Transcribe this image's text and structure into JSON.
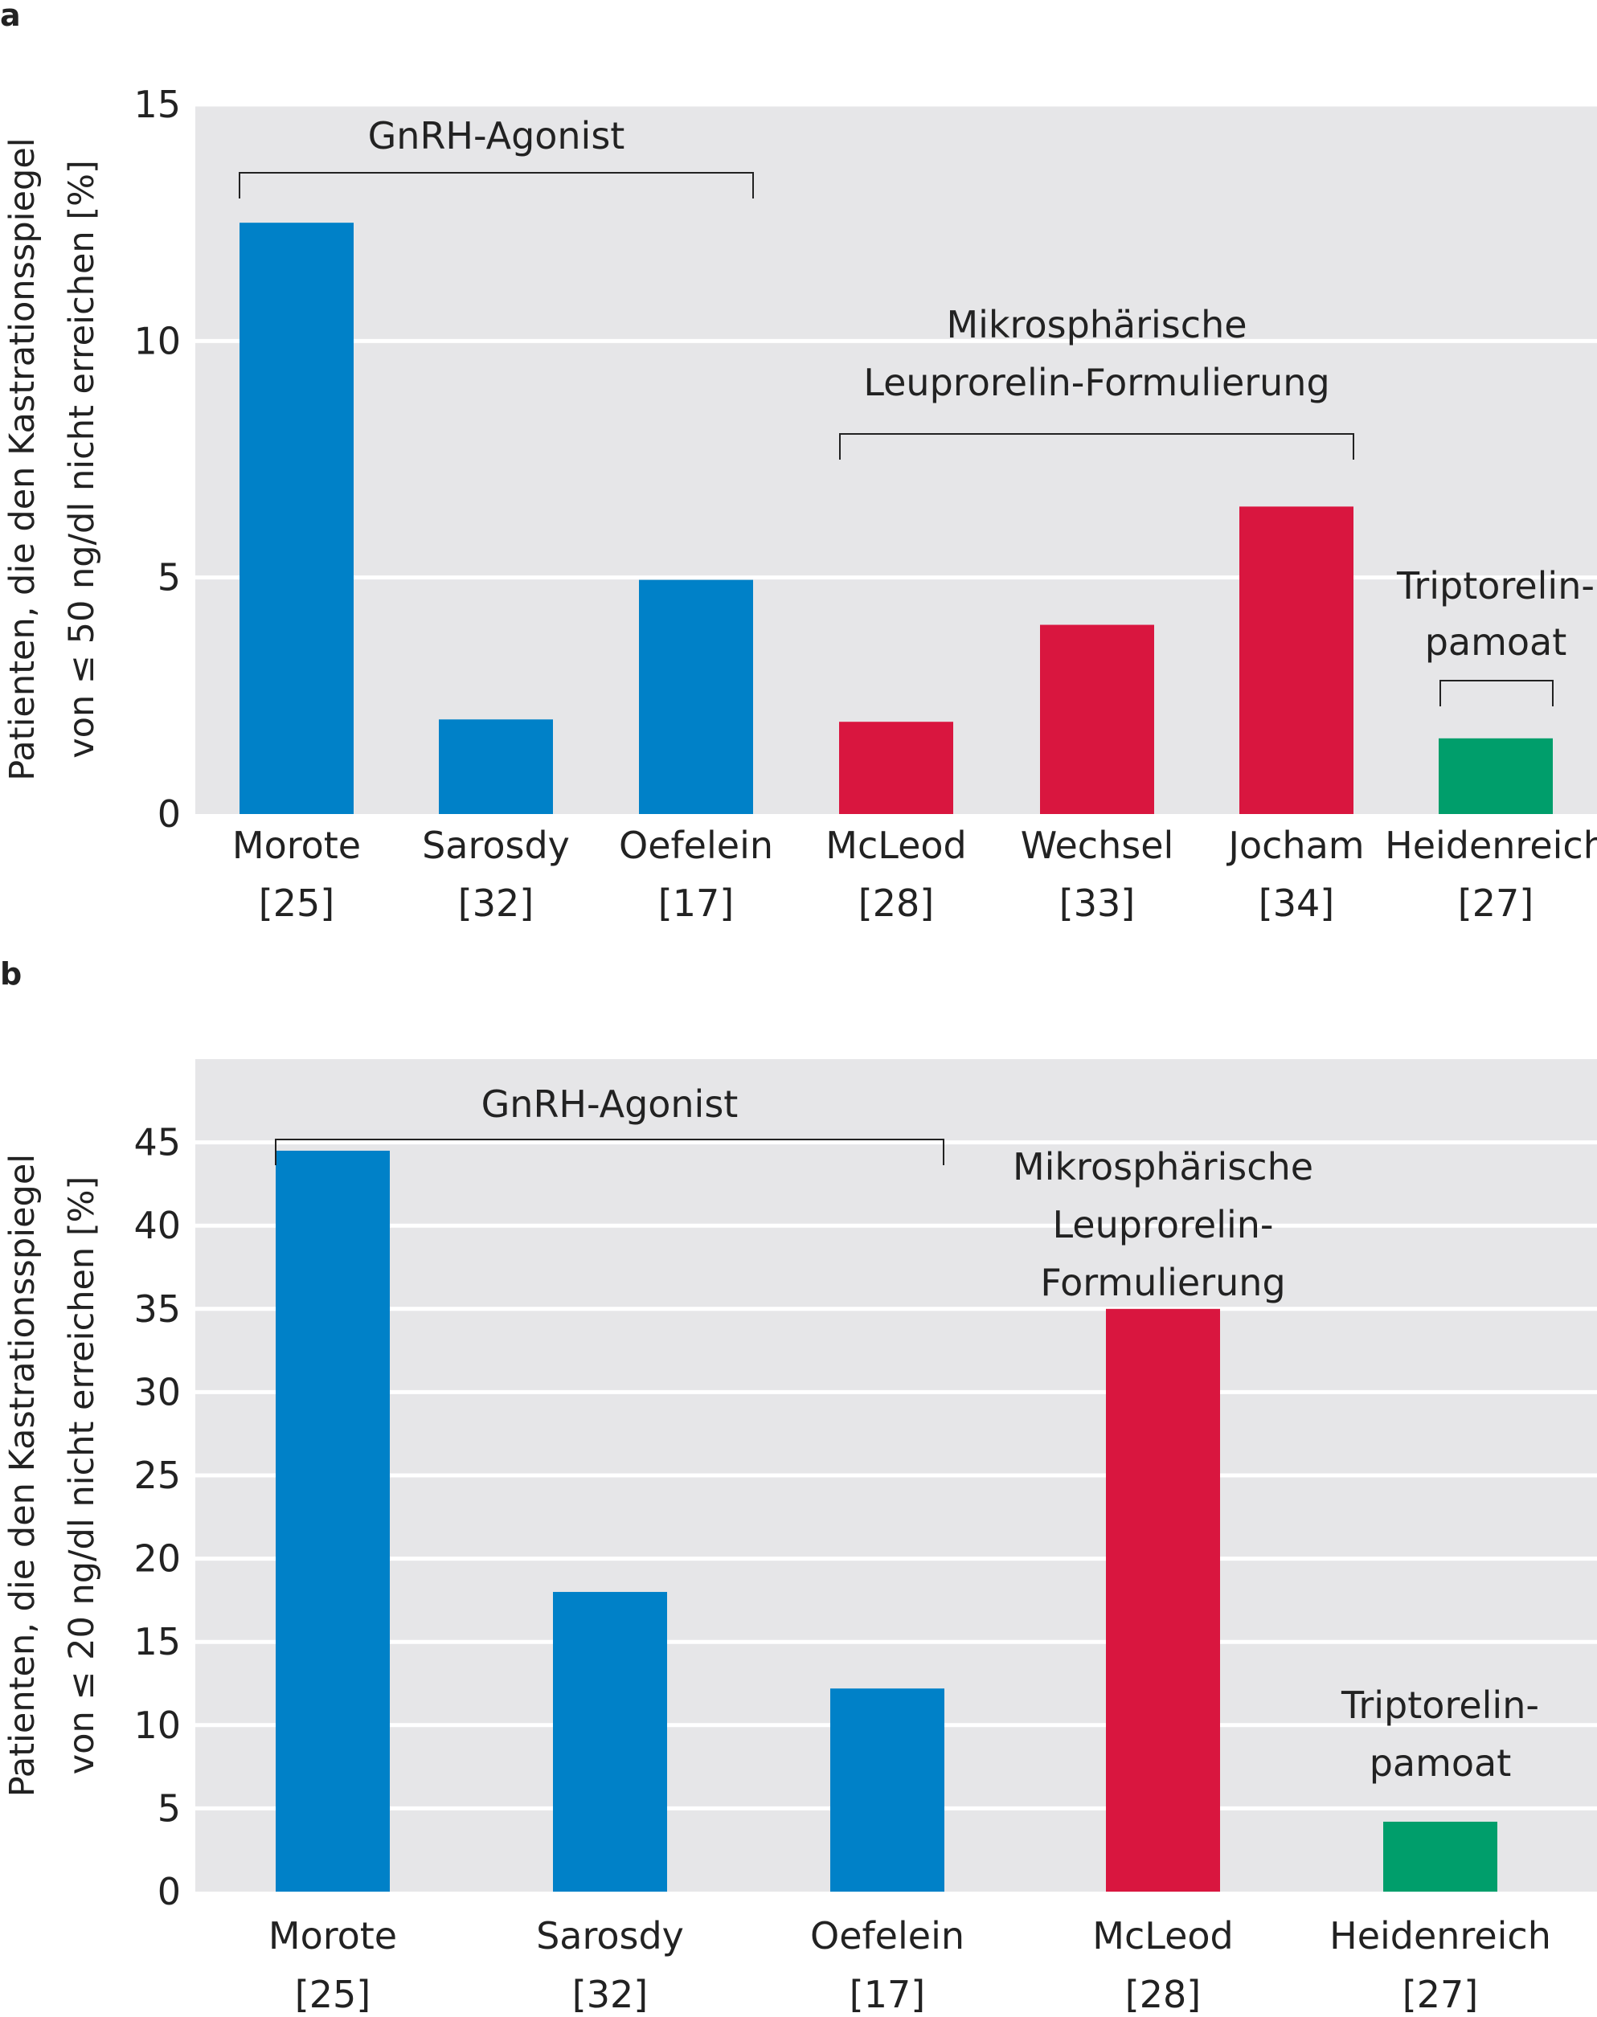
{
  "chart_data": [
    {
      "panel": "a",
      "type": "bar",
      "ylabel": [
        "Patienten, die den Kastrationsspiegel",
        "von ≤ 50 ng/dl nicht erreichen [%]"
      ],
      "ylim": [
        0,
        15
      ],
      "yticks": [
        0,
        5,
        10,
        15
      ],
      "grid": true,
      "categories": [
        {
          "name": "Morote",
          "ref": "[25]"
        },
        {
          "name": "Sarosdy",
          "ref": "[32]"
        },
        {
          "name": "Oefelein",
          "ref": "[17]"
        },
        {
          "name": "McLeod",
          "ref": "[28]"
        },
        {
          "name": "Wechsel",
          "ref": "[33]"
        },
        {
          "name": "Jocham",
          "ref": "[34]"
        },
        {
          "name": "Heidenreich",
          "ref": "[27]"
        }
      ],
      "values": [
        12.5,
        2.0,
        4.95,
        1.95,
        4.0,
        6.5,
        1.6
      ],
      "groups": [
        {
          "label": [
            "GnRH-Agonist"
          ],
          "from": 0,
          "to": 2,
          "color": "#0081C8"
        },
        {
          "label": [
            "Mikrosphärische",
            "Leuprorelin-Formulierung"
          ],
          "from": 3,
          "to": 5,
          "color": "#D9163F"
        },
        {
          "label": [
            "Triptorelin-",
            "pamoat"
          ],
          "from": 6,
          "to": 6,
          "color": "#009E6B"
        }
      ]
    },
    {
      "panel": "b",
      "type": "bar",
      "ylabel": [
        "Patienten, die den Kastrationsspiegel",
        "von ≤ 20 ng/dl nicht erreichen [%]"
      ],
      "ylim": [
        0,
        50
      ],
      "yticks": [
        0,
        5,
        10,
        15,
        20,
        25,
        30,
        35,
        40,
        45
      ],
      "grid": true,
      "categories": [
        {
          "name": "Morote",
          "ref": "[25]"
        },
        {
          "name": "Sarosdy",
          "ref": "[32]"
        },
        {
          "name": "Oefelein",
          "ref": "[17]"
        },
        {
          "name": "McLeod",
          "ref": "[28]"
        },
        {
          "name": "Heidenreich",
          "ref": "[27]"
        }
      ],
      "values": [
        44.5,
        18.0,
        12.2,
        35.0,
        4.2
      ],
      "groups": [
        {
          "label": [
            "GnRH-Agonist"
          ],
          "from": 0,
          "to": 2,
          "color": "#0081C8"
        },
        {
          "label": [
            "Mikrosphärische",
            "Leuprorelin-",
            "Formulierung"
          ],
          "from": 3,
          "to": 3,
          "color": "#D9163F"
        },
        {
          "label": [
            "Triptorelin-",
            "pamoat"
          ],
          "from": 4,
          "to": 4,
          "color": "#009E6B"
        }
      ]
    }
  ]
}
